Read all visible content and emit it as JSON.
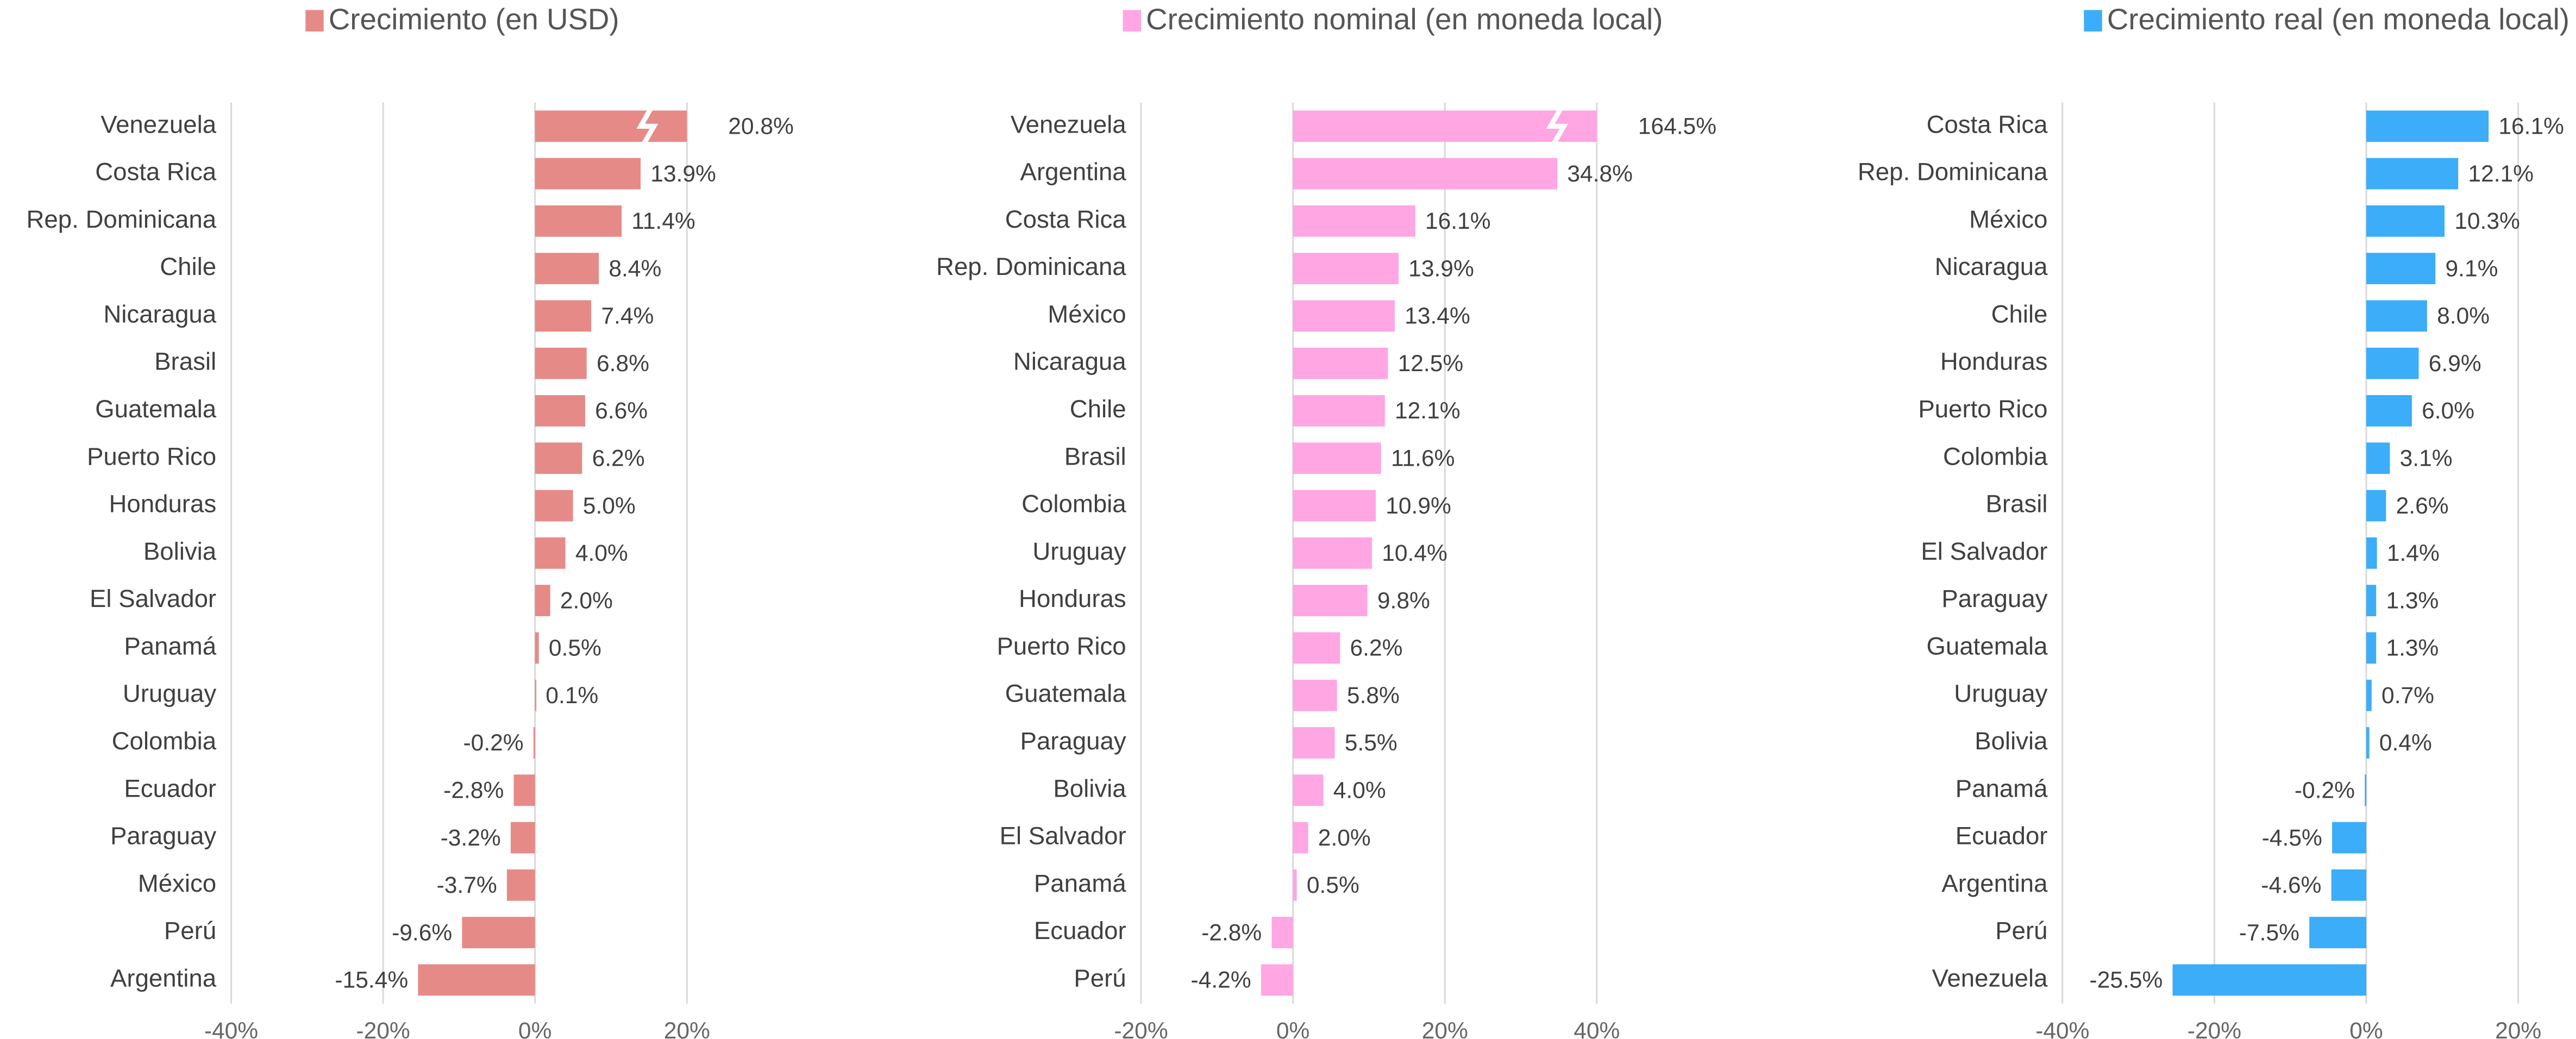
{
  "chart_data": [
    {
      "type": "bar",
      "orientation": "horizontal",
      "categories": [
        "Venezuela",
        "Costa Rica",
        "Rep. Dominicana",
        "Chile",
        "Nicaragua",
        "Brasil",
        "Guatemala",
        "Puerto Rico",
        "Honduras",
        "Bolivia",
        "El Salvador",
        "Panamá",
        "Uruguay",
        "Colombia",
        "Ecuador",
        "Paraguay",
        "México",
        "Perú",
        "Argentina"
      ],
      "series": [
        {
          "name": "Crecimiento (en USD)",
          "color": "#e68a87",
          "values": [
            20.8,
            13.9,
            11.4,
            8.4,
            7.4,
            6.8,
            6.6,
            6.2,
            5.0,
            4.0,
            2.0,
            0.5,
            0.1,
            -0.2,
            -2.8,
            -3.2,
            -3.7,
            -9.6,
            -15.4
          ],
          "value_labels": [
            "20.8%",
            "13.9%",
            "11.4%",
            "8.4%",
            "7.4%",
            "6.8%",
            "6.6%",
            "6.2%",
            "5.0%",
            "4.0%",
            "2.0%",
            "0.5%",
            "0.1%",
            "-0.2%",
            "-2.8%",
            "-3.2%",
            "-3.7%",
            "-9.6%",
            "-15.4%"
          ]
        }
      ],
      "xlim": [
        -40,
        20
      ],
      "xticks": [
        {
          "value": -40,
          "label": "-40%"
        },
        {
          "value": -20,
          "label": "-20%"
        },
        {
          "value": 0,
          "label": "0%"
        },
        {
          "value": 20,
          "label": "20%"
        }
      ],
      "grid": true
    },
    {
      "type": "bar",
      "orientation": "horizontal",
      "categories": [
        "Venezuela",
        "Argentina",
        "Costa Rica",
        "Rep. Dominicana",
        "México",
        "Nicaragua",
        "Chile",
        "Brasil",
        "Colombia",
        "Uruguay",
        "Honduras",
        "Puerto Rico",
        "Guatemala",
        "Paraguay",
        "Bolivia",
        "El Salvador",
        "Panamá",
        "Ecuador",
        "Perú"
      ],
      "series": [
        {
          "name": "Crecimiento nominal (en moneda local)",
          "color": "#ffa6e3",
          "values": [
            164.5,
            34.8,
            16.1,
            13.9,
            13.4,
            12.5,
            12.1,
            11.6,
            10.9,
            10.4,
            9.8,
            6.2,
            5.8,
            5.5,
            4.0,
            2.0,
            0.5,
            -2.8,
            -4.2
          ],
          "value_labels": [
            "164.5%",
            "34.8%",
            "16.1%",
            "13.9%",
            "13.4%",
            "12.5%",
            "12.1%",
            "11.6%",
            "10.9%",
            "10.4%",
            "9.8%",
            "6.2%",
            "5.8%",
            "5.5%",
            "4.0%",
            "2.0%",
            "0.5%",
            "-2.8%",
            "-4.2%"
          ]
        }
      ],
      "xlim": [
        -20,
        40
      ],
      "xticks": [
        {
          "value": -20,
          "label": "-20%"
        },
        {
          "value": 0,
          "label": "0%"
        },
        {
          "value": 20,
          "label": "20%"
        },
        {
          "value": 40,
          "label": "40%"
        }
      ],
      "grid": true
    },
    {
      "type": "bar",
      "orientation": "horizontal",
      "categories": [
        "Costa Rica",
        "Rep. Dominicana",
        "México",
        "Nicaragua",
        "Chile",
        "Honduras",
        "Puerto Rico",
        "Colombia",
        "Brasil",
        "El Salvador",
        "Paraguay",
        "Guatemala",
        "Uruguay",
        "Bolivia",
        "Panamá",
        "Ecuador",
        "Argentina",
        "Perú",
        "Venezuela"
      ],
      "series": [
        {
          "name": "Crecimiento real (en moneda local)",
          "color": "#3badf9",
          "values": [
            16.1,
            12.1,
            10.3,
            9.1,
            8.0,
            6.9,
            6.0,
            3.1,
            2.6,
            1.4,
            1.3,
            1.3,
            0.7,
            0.4,
            -0.2,
            -4.5,
            -4.6,
            -7.5,
            -25.5
          ],
          "value_labels": [
            "16.1%",
            "12.1%",
            "10.3%",
            "9.1%",
            "8.0%",
            "6.9%",
            "6.0%",
            "3.1%",
            "2.6%",
            "1.4%",
            "1.3%",
            "1.3%",
            "0.7%",
            "0.4%",
            "-0.2%",
            "-4.5%",
            "-4.6%",
            "-7.5%",
            "-25.5%"
          ]
        }
      ],
      "xlim": [
        -40,
        20
      ],
      "xticks": [
        {
          "value": -40,
          "label": "-40%"
        },
        {
          "value": -20,
          "label": "-20%"
        },
        {
          "value": 0,
          "label": "0%"
        },
        {
          "value": 20,
          "label": "20%"
        }
      ],
      "grid": true
    }
  ]
}
